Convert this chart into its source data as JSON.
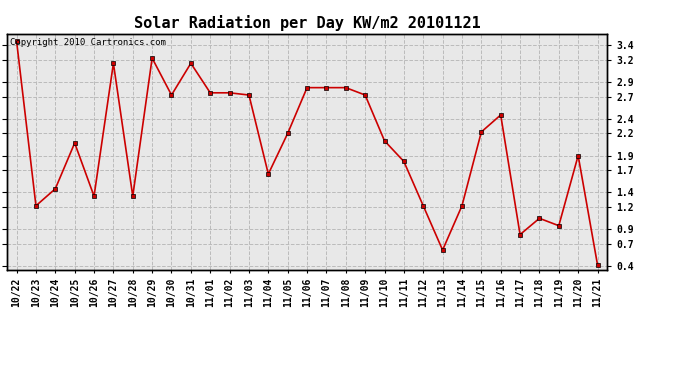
{
  "title": "Solar Radiation per Day KW/m2 20101121",
  "copyright_text": "Copyright 2010 Cartronics.com",
  "labels": [
    "10/22",
    "10/23",
    "10/24",
    "10/25",
    "10/26",
    "10/27",
    "10/28",
    "10/29",
    "10/30",
    "10/31",
    "11/01",
    "11/02",
    "11/03",
    "11/04",
    "11/05",
    "11/06",
    "11/07",
    "11/08",
    "11/09",
    "11/10",
    "11/11",
    "11/12",
    "11/13",
    "11/14",
    "11/15",
    "11/16",
    "11/17",
    "11/18",
    "11/19",
    "11/20",
    "11/21"
  ],
  "values": [
    3.45,
    1.22,
    1.45,
    2.07,
    1.35,
    3.15,
    1.35,
    3.22,
    2.72,
    3.15,
    2.75,
    2.75,
    2.72,
    1.65,
    2.2,
    2.82,
    2.82,
    2.82,
    2.72,
    2.1,
    1.82,
    1.22,
    0.62,
    1.22,
    2.22,
    2.45,
    0.83,
    1.05,
    0.95,
    1.9,
    0.42
  ],
  "line_color": "#cc0000",
  "marker_color": "#000000",
  "background_color": "#e8e8e8",
  "grid_color": "#bbbbbb",
  "ylim": [
    0.35,
    3.55
  ],
  "yticks": [
    0.4,
    0.7,
    0.9,
    1.2,
    1.4,
    1.7,
    1.9,
    2.2,
    2.4,
    2.7,
    2.9,
    3.2,
    3.4
  ],
  "title_fontsize": 11,
  "tick_fontsize": 7,
  "copyright_fontsize": 6.5
}
